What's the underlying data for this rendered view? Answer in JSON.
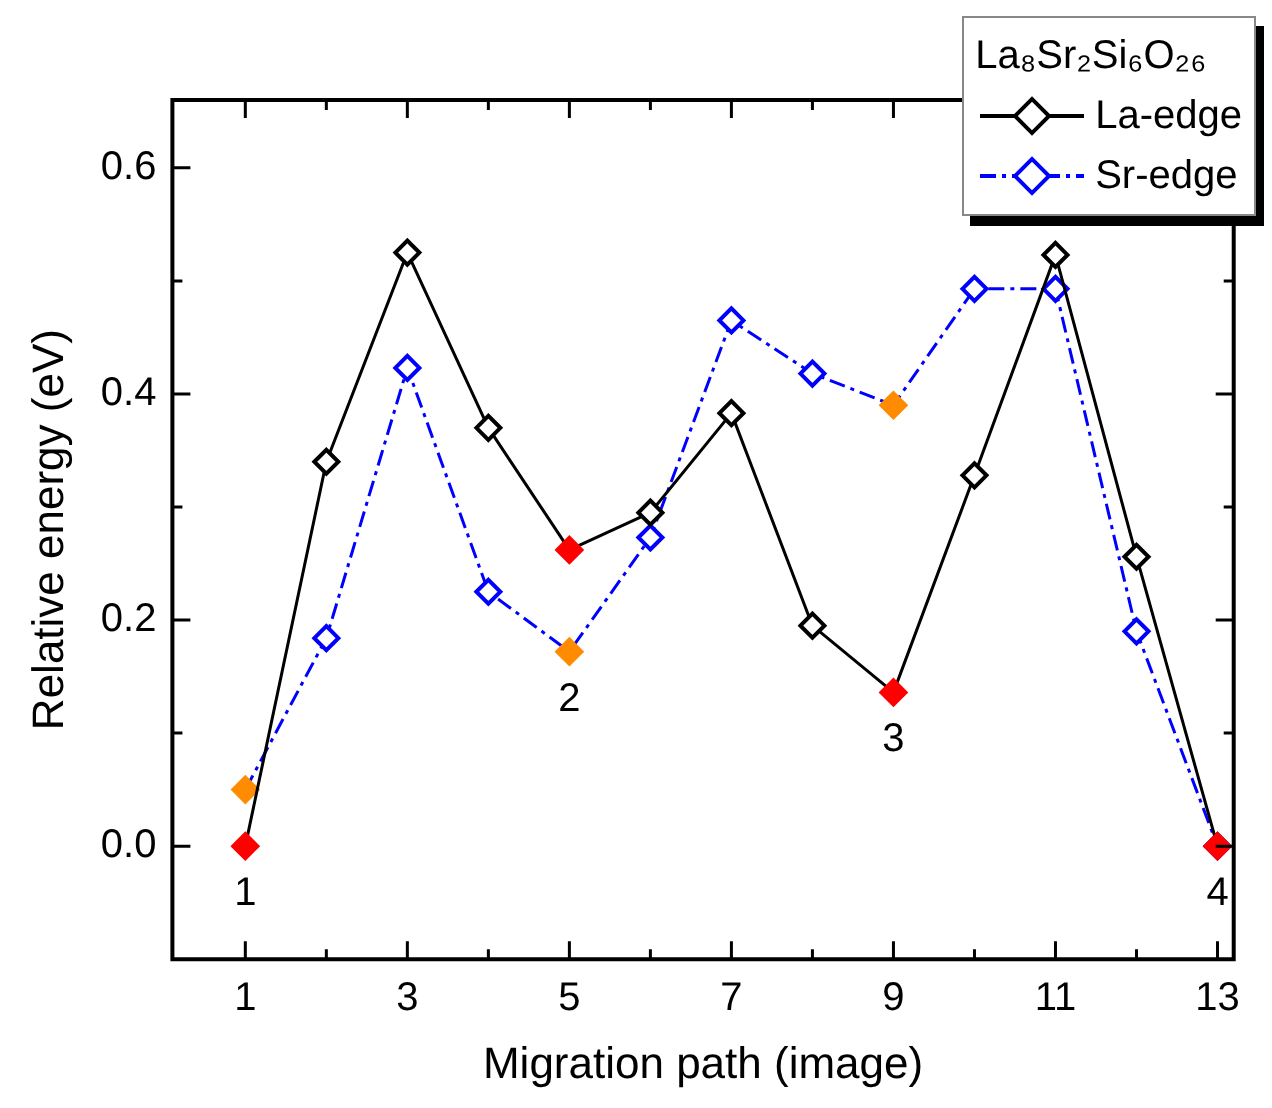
{
  "chart_data": {
    "type": "line",
    "xlabel": "Migration path (image)",
    "ylabel": "Relative energy (eV)",
    "x": [
      1,
      2,
      3,
      4,
      5,
      6,
      7,
      8,
      9,
      10,
      11,
      12,
      13
    ],
    "xlim": [
      0.1,
      13.2
    ],
    "xticks": [
      1,
      {
        "value": 2,
        "label": null
      },
      3,
      {
        "value": 4,
        "label": null
      },
      5,
      {
        "value": 6,
        "label": null
      },
      7,
      {
        "value": 8,
        "label": null
      },
      9,
      {
        "value": 10,
        "label": null
      },
      11,
      {
        "value": 12,
        "label": null
      },
      13
    ],
    "ylim": [
      -0.1,
      0.66
    ],
    "yticks": [
      {
        "value": 0,
        "label": "0.0"
      },
      {
        "value": 0.1,
        "label": null
      },
      {
        "value": 0.2,
        "label": "0.2"
      },
      {
        "value": 0.3,
        "label": null
      },
      {
        "value": 0.4,
        "label": "0.4"
      },
      {
        "value": 0.5,
        "label": null
      },
      {
        "value": 0.6,
        "label": "0.6"
      }
    ],
    "series": [
      {
        "name": "La-edge",
        "color": "#000000",
        "line_style": "solid",
        "values": [
          0.0,
          0.34,
          0.525,
          0.37,
          0.262,
          0.295,
          0.383,
          0.195,
          0.136,
          0.328,
          0.523,
          0.256,
          0.0
        ],
        "colors": [
          "#ff0000",
          "#000000",
          "#000000",
          "#000000",
          "#ff0000",
          "#000000",
          "#000000",
          "#000000",
          "#ff0000",
          "#000000",
          "#000000",
          "#000000",
          "#ff0000"
        ]
      },
      {
        "name": "Sr-edge",
        "color": "#0000ff",
        "line_style": "dashed",
        "values": [
          0.05,
          0.184,
          0.423,
          0.225,
          0.172,
          0.273,
          0.465,
          0.418,
          0.39,
          0.493,
          0.493,
          0.19,
          0.0
        ],
        "colors": [
          "#ff8c00",
          "#0000ff",
          "#0000ff",
          "#0000ff",
          "#ff8c00",
          "#0000ff",
          "#0000ff",
          "#0000ff",
          "#ff8c00",
          "#0000ff",
          "#0000ff",
          "#0000ff",
          "#0000ff"
        ]
      }
    ],
    "marker": "diamond",
    "grid": false,
    "legend": "top right",
    "legend_title": "La₈Sr₂Si₆O₂₆",
    "annotations": [
      {
        "text": "1",
        "x": 1,
        "y": 0.0
      },
      {
        "text": "2",
        "x": 5,
        "y": 0.172
      },
      {
        "text": "3",
        "x": 9,
        "y": 0.136
      },
      {
        "text": "4",
        "x": 13,
        "y": 0.0
      }
    ]
  }
}
